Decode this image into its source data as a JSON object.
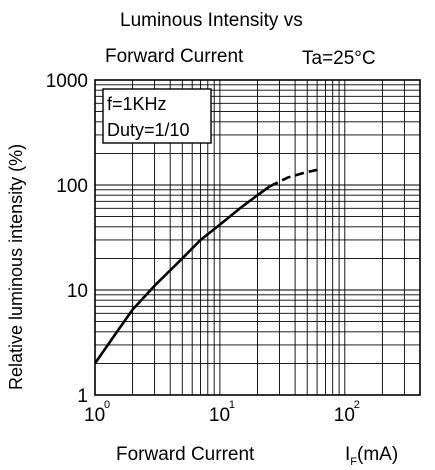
{
  "chart_data": {
    "type": "line",
    "title_line1": "Luminous Intensity vs",
    "title_line2": "Forward Current",
    "condition": "Ta=25°C",
    "annotation_line1": "f=1KHz",
    "annotation_line2": "Duty=1/10",
    "xlabel": "Forward Current",
    "xunit": {
      "base": "I",
      "sub": "F",
      "rest": "(mA)"
    },
    "ylabel": "Relative luminous intensity  (%)",
    "x_scale": "log",
    "y_scale": "log",
    "xlim": [
      1,
      400
    ],
    "ylim": [
      1,
      1000
    ],
    "x_ticks": [
      {
        "value": 1,
        "base": "10",
        "exp": "0"
      },
      {
        "value": 10,
        "base": "10",
        "exp": "1"
      },
      {
        "value": 100,
        "base": "10",
        "exp": "2"
      }
    ],
    "y_ticks": [
      {
        "value": 1,
        "label": "1"
      },
      {
        "value": 10,
        "label": "10"
      },
      {
        "value": 100,
        "label": "100"
      },
      {
        "value": 1000,
        "label": "1000"
      }
    ],
    "grid": true,
    "series": [
      {
        "style": "solid",
        "x": [
          1,
          1.5,
          2,
          3,
          5,
          7,
          10,
          15,
          20,
          25
        ],
        "y": [
          2,
          4,
          6.5,
          11,
          20,
          30,
          42,
          62,
          80,
          97
        ]
      },
      {
        "style": "dashed",
        "x": [
          25,
          35,
          50,
          65
        ],
        "y": [
          97,
          118,
          133,
          142
        ]
      }
    ]
  }
}
